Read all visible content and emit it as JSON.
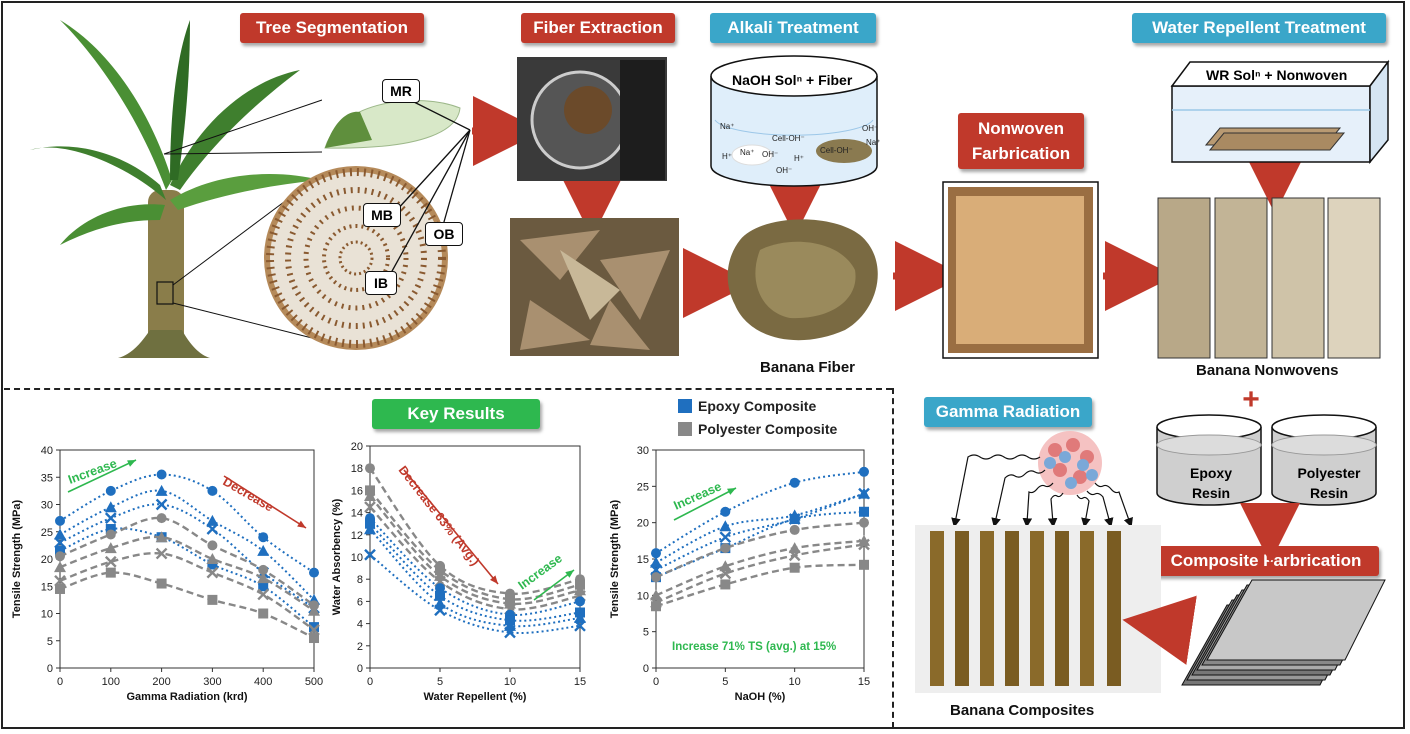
{
  "titles": {
    "tree_segmentation": "Tree Segmentation",
    "fiber_extraction": "Fiber Extraction",
    "alkali_treatment": "Alkali Treatment",
    "water_repellent_treatment": "Water Repellent Treatment",
    "nonwoven_fabrication": "Nonwoven Farbrication",
    "gamma_radiation": "Gamma Radiation",
    "composite_fabrication": "Composite Farbrication",
    "key_results": "Key Results"
  },
  "callouts": {
    "mr": "MR",
    "mb": "MB",
    "ob": "OB",
    "ib": "IB"
  },
  "alkali_beaker": {
    "label": "NaOH Solⁿ + Fiber",
    "ions": [
      "Na⁺",
      "H⁺",
      "Na⁺",
      "OH⁻",
      "Cell-OH⁻",
      "H⁺",
      "OH⁻",
      "Cell-OH⁻",
      "OH⁻",
      "Na⁺"
    ]
  },
  "wr_tank": {
    "label": "WR Solⁿ + Nonwoven"
  },
  "resins": {
    "epoxy": "Epoxy Resin",
    "polyester": "Polyester Resin"
  },
  "captions": {
    "banana_fiber": "Banana Fiber",
    "banana_nonwovens": "Banana Nonwovens",
    "banana_composites": "Banana Composites"
  },
  "symbols": {
    "plus": "+"
  },
  "legend": {
    "epoxy": "Epoxy Composite",
    "polyester": "Polyester Composite",
    "epoxy_color": "#1f6fbf",
    "polyester_color": "#888888"
  },
  "chart_data": [
    {
      "type": "scatter",
      "xlabel": "Gamma Radiation (krd)",
      "ylabel": "Tensile Strength (MPa)",
      "xlim": [
        0,
        500
      ],
      "ylim": [
        0,
        40
      ],
      "xticks": [
        0,
        100,
        200,
        300,
        400,
        500
      ],
      "yticks": [
        0,
        5,
        10,
        15,
        20,
        25,
        30,
        35,
        40
      ],
      "x": [
        0,
        100,
        200,
        300,
        400,
        500
      ],
      "series": [
        {
          "group": "epoxy",
          "marker": "circle",
          "values": [
            27,
            32.5,
            35.5,
            32.5,
            24,
            17.5
          ]
        },
        {
          "group": "epoxy",
          "marker": "triangle",
          "values": [
            24.5,
            29.5,
            32.5,
            27,
            21.5,
            12.5
          ]
        },
        {
          "group": "epoxy",
          "marker": "cross",
          "values": [
            23,
            27.5,
            30,
            25.5,
            17.5,
            11
          ]
        },
        {
          "group": "epoxy",
          "marker": "square",
          "values": [
            21.5,
            25.5,
            24,
            19,
            15,
            7.5
          ]
        },
        {
          "group": "polyester",
          "marker": "circle",
          "values": [
            20.5,
            24.5,
            27.5,
            22.5,
            18,
            11.5
          ]
        },
        {
          "group": "polyester",
          "marker": "triangle",
          "values": [
            18.5,
            22,
            24,
            20,
            16.5,
            10.5
          ]
        },
        {
          "group": "polyester",
          "marker": "cross",
          "values": [
            16,
            19.5,
            21,
            17.5,
            13.5,
            7
          ]
        },
        {
          "group": "polyester",
          "marker": "square",
          "values": [
            14.5,
            17.5,
            15.5,
            12.5,
            10,
            5.5
          ]
        }
      ],
      "annotations": [
        {
          "text": "Increase",
          "color": "#2eb84f"
        },
        {
          "text": "Decrease",
          "color": "#c0392b"
        }
      ]
    },
    {
      "type": "scatter",
      "xlabel": "Water Repellent (%)",
      "ylabel": "Water Absorbency (%)",
      "xlim": [
        0,
        15
      ],
      "ylim": [
        0,
        20
      ],
      "xticks": [
        0,
        5,
        10,
        15
      ],
      "yticks": [
        0,
        2,
        4,
        6,
        8,
        10,
        12,
        14,
        16,
        18,
        20
      ],
      "x": [
        0,
        5,
        10,
        15
      ],
      "series": [
        {
          "group": "polyester",
          "marker": "circle",
          "values": [
            18,
            9.2,
            6.7,
            8
          ]
        },
        {
          "group": "polyester",
          "marker": "square",
          "values": [
            16,
            8.8,
            6.2,
            7.5
          ]
        },
        {
          "group": "polyester",
          "marker": "triangle",
          "values": [
            15.5,
            8.3,
            5.8,
            7
          ]
        },
        {
          "group": "polyester",
          "marker": "cross",
          "values": [
            14.5,
            7.8,
            5.3,
            6.5
          ]
        },
        {
          "group": "epoxy",
          "marker": "circle",
          "values": [
            13.5,
            7.2,
            4.8,
            6
          ]
        },
        {
          "group": "epoxy",
          "marker": "square",
          "values": [
            13,
            6.5,
            4.3,
            5
          ]
        },
        {
          "group": "epoxy",
          "marker": "triangle",
          "values": [
            12.5,
            5.8,
            3.8,
            4.5
          ]
        },
        {
          "group": "epoxy",
          "marker": "cross",
          "values": [
            10.2,
            5.2,
            3.2,
            3.8
          ]
        }
      ],
      "annotations": [
        {
          "text": "Decrease 63% (Avg.)",
          "color": "#c0392b"
        },
        {
          "text": "Increase",
          "color": "#2eb84f"
        }
      ]
    },
    {
      "type": "scatter",
      "xlabel": "NaOH (%)",
      "ylabel": "Tensile Strength (MPa)",
      "xlim": [
        0,
        15
      ],
      "ylim": [
        0,
        30
      ],
      "xticks": [
        0,
        5,
        10,
        15
      ],
      "yticks": [
        0,
        5,
        10,
        15,
        20,
        25,
        30
      ],
      "x": [
        0,
        5,
        10,
        15
      ],
      "series": [
        {
          "group": "epoxy",
          "marker": "circle",
          "values": [
            15.8,
            21.5,
            25.5,
            27
          ]
        },
        {
          "group": "epoxy",
          "marker": "triangle",
          "values": [
            14.5,
            19.5,
            21,
            24
          ]
        },
        {
          "group": "epoxy",
          "marker": "cross",
          "values": [
            13.5,
            18,
            20.5,
            24
          ]
        },
        {
          "group": "epoxy",
          "marker": "square",
          "values": [
            12.5,
            16.5,
            20.5,
            21.5
          ]
        },
        {
          "group": "polyester",
          "marker": "circle",
          "values": [
            12.5,
            16.5,
            19,
            20
          ]
        },
        {
          "group": "polyester",
          "marker": "triangle",
          "values": [
            10,
            14,
            16.5,
            17.5
          ]
        },
        {
          "group": "polyester",
          "marker": "cross",
          "values": [
            9,
            13,
            15.5,
            17
          ]
        },
        {
          "group": "polyester",
          "marker": "square",
          "values": [
            8.5,
            11.5,
            13.8,
            14.2
          ]
        }
      ],
      "annotations": [
        {
          "text": "Increase",
          "color": "#2eb84f"
        },
        {
          "text": "Increase 71% TS (avg.) at 15%",
          "color": "#2eb84f"
        }
      ]
    }
  ]
}
